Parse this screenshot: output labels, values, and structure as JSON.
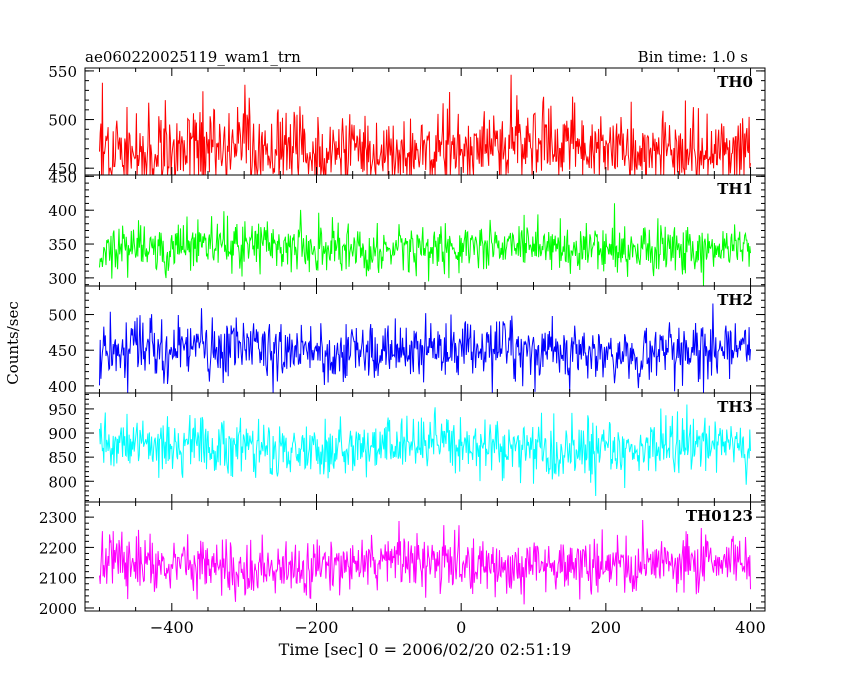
{
  "header": {
    "title": "ae060220025119_wam1_trn",
    "bin_time": "Bin time: 1.0 s"
  },
  "chart_data": {
    "type": "line",
    "xlabel": "Time [sec] 0 = 2006/02/20 02:51:19",
    "ylabel": "Counts/sec",
    "xlim": [
      -520,
      420
    ],
    "x_ticks": [
      -400,
      -200,
      0,
      200,
      400
    ],
    "x_tick_labels": [
      "−400",
      "−200",
      "0",
      "200",
      "400"
    ],
    "x_range_data": [
      -500,
      400
    ],
    "bin": 1.0,
    "grid": false,
    "panels": [
      {
        "name": "TH0",
        "color": "#ff0000",
        "ylim": [
          443,
          553
        ],
        "y_ticks": [
          450,
          500,
          550
        ],
        "y_tick_labels": [
          "450",
          "500",
          "550"
        ],
        "mean": 470,
        "sd": 20
      },
      {
        "name": "TH1",
        "color": "#00ff00",
        "ylim": [
          288,
          452
        ],
        "y_ticks": [
          300,
          350,
          400,
          450
        ],
        "y_tick_labels": [
          "300",
          "350",
          "400",
          "450"
        ],
        "mean": 345,
        "sd": 18
      },
      {
        "name": "TH2",
        "color": "#0000ff",
        "ylim": [
          390,
          540
        ],
        "y_ticks": [
          400,
          450,
          500
        ],
        "y_tick_labels": [
          "400",
          "450",
          "500"
        ],
        "mean": 450,
        "sd": 21
      },
      {
        "name": "TH3",
        "color": "#00ffff",
        "ylim": [
          757,
          983
        ],
        "y_ticks": [
          800,
          850,
          900,
          950
        ],
        "y_tick_labels": [
          "800",
          "850",
          "900",
          "950"
        ],
        "mean": 870,
        "sd": 29
      },
      {
        "name": "TH0123",
        "color": "#ff00ff",
        "ylim": [
          1990,
          2350
        ],
        "y_ticks": [
          2000,
          2100,
          2200,
          2300
        ],
        "y_tick_labels": [
          "2000",
          "2100",
          "2200",
          "2300"
        ],
        "mean": 2140,
        "sd": 48
      }
    ]
  }
}
